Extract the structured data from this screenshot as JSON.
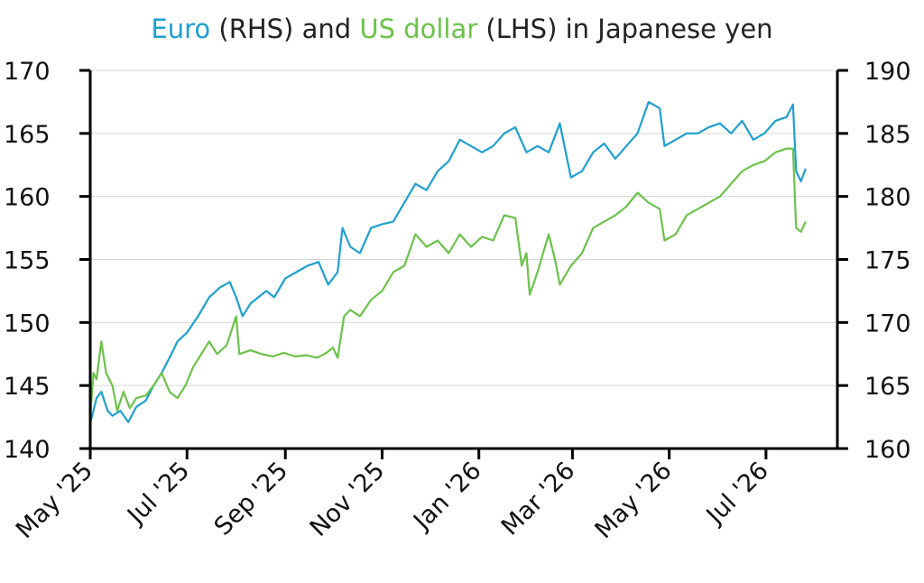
{
  "chart_data": {
    "type": "line",
    "title": "Euro (RHS) and US dollar (LHS) in Japanese yen",
    "title_parts": [
      {
        "text": "Euro",
        "color": "#1e9fd1"
      },
      {
        "text": " (RHS) and ",
        "color": "#222222"
      },
      {
        "text": "US dollar",
        "color": "#6cc24a"
      },
      {
        "text": " (LHS) in Japanese yen",
        "color": "#222222"
      }
    ],
    "x_ticks": [
      "May '25",
      "Jul '25",
      "Sep '25",
      "Nov '25",
      "Jan '26",
      "Mar '26",
      "May '26",
      "Jul '26"
    ],
    "x_tick_dates": [
      "2025-05-01",
      "2025-07-01",
      "2025-09-01",
      "2025-11-01",
      "2026-01-01",
      "2026-03-01",
      "2026-05-01",
      "2026-07-01"
    ],
    "xlim": [
      "2025-05-01",
      "2026-08-15"
    ],
    "y_left": {
      "ticks": [
        140,
        145,
        150,
        155,
        160,
        165,
        170
      ],
      "ylim": [
        140,
        170
      ]
    },
    "y_right": {
      "ticks": [
        160,
        165,
        170,
        175,
        180,
        185,
        190
      ],
      "ylim": [
        160,
        190
      ]
    },
    "grid": true,
    "series": [
      {
        "name": "Euro",
        "axis": "right",
        "color": "#1e9fd1",
        "points": [
          [
            "2025-05-01",
            162.0
          ],
          [
            "2025-05-05",
            164.0
          ],
          [
            "2025-05-08",
            164.5
          ],
          [
            "2025-05-12",
            163.0
          ],
          [
            "2025-05-15",
            162.6
          ],
          [
            "2025-05-20",
            163.0
          ],
          [
            "2025-05-25",
            162.1
          ],
          [
            "2025-05-30",
            163.3
          ],
          [
            "2025-06-05",
            163.8
          ],
          [
            "2025-06-10",
            165.0
          ],
          [
            "2025-06-15",
            166.0
          ],
          [
            "2025-06-20",
            167.2
          ],
          [
            "2025-06-25",
            168.5
          ],
          [
            "2025-07-01",
            169.2
          ],
          [
            "2025-07-08",
            170.5
          ],
          [
            "2025-07-15",
            172.0
          ],
          [
            "2025-07-22",
            172.8
          ],
          [
            "2025-07-28",
            173.2
          ],
          [
            "2025-08-01",
            172.0
          ],
          [
            "2025-08-05",
            170.5
          ],
          [
            "2025-08-10",
            171.5
          ],
          [
            "2025-08-15",
            172.0
          ],
          [
            "2025-08-20",
            172.5
          ],
          [
            "2025-08-25",
            172.0
          ],
          [
            "2025-09-01",
            173.5
          ],
          [
            "2025-09-08",
            174.0
          ],
          [
            "2025-09-15",
            174.5
          ],
          [
            "2025-09-22",
            174.8
          ],
          [
            "2025-09-28",
            173.0
          ],
          [
            "2025-10-04",
            174.0
          ],
          [
            "2025-10-07",
            177.5
          ],
          [
            "2025-10-12",
            176.0
          ],
          [
            "2025-10-18",
            175.5
          ],
          [
            "2025-10-25",
            177.5
          ],
          [
            "2025-11-01",
            177.8
          ],
          [
            "2025-11-08",
            178.0
          ],
          [
            "2025-11-15",
            179.5
          ],
          [
            "2025-11-22",
            181.0
          ],
          [
            "2025-11-29",
            180.5
          ],
          [
            "2025-12-06",
            182.0
          ],
          [
            "2025-12-13",
            182.8
          ],
          [
            "2025-12-20",
            184.5
          ],
          [
            "2025-12-27",
            184.0
          ],
          [
            "2026-01-03",
            183.5
          ],
          [
            "2026-01-10",
            184.0
          ],
          [
            "2026-01-17",
            185.0
          ],
          [
            "2026-01-24",
            185.5
          ],
          [
            "2026-01-31",
            183.5
          ],
          [
            "2026-02-07",
            184.0
          ],
          [
            "2026-02-14",
            183.5
          ],
          [
            "2026-02-21",
            185.8
          ],
          [
            "2026-02-28",
            181.5
          ],
          [
            "2026-03-07",
            182.0
          ],
          [
            "2026-03-14",
            183.5
          ],
          [
            "2026-03-21",
            184.2
          ],
          [
            "2026-03-28",
            183.0
          ],
          [
            "2026-04-04",
            184.0
          ],
          [
            "2026-04-11",
            185.0
          ],
          [
            "2026-04-18",
            187.5
          ],
          [
            "2026-04-25",
            187.0
          ],
          [
            "2026-04-28",
            184.0
          ],
          [
            "2026-05-05",
            184.5
          ],
          [
            "2026-05-12",
            185.0
          ],
          [
            "2026-05-19",
            185.0
          ],
          [
            "2026-05-26",
            185.5
          ],
          [
            "2026-06-02",
            185.8
          ],
          [
            "2026-06-09",
            185.0
          ],
          [
            "2026-06-16",
            186.0
          ],
          [
            "2026-06-23",
            184.5
          ],
          [
            "2026-06-30",
            185.0
          ],
          [
            "2026-07-07",
            186.0
          ],
          [
            "2026-07-14",
            186.3
          ],
          [
            "2026-07-18",
            187.3
          ],
          [
            "2026-07-20",
            182.0
          ],
          [
            "2026-07-23",
            181.2
          ],
          [
            "2026-07-26",
            182.2
          ]
        ]
      },
      {
        "name": "US dollar",
        "axis": "left",
        "color": "#6cc24a",
        "points": [
          [
            "2025-05-01",
            142.5
          ],
          [
            "2025-05-03",
            146.0
          ],
          [
            "2025-05-05",
            145.5
          ],
          [
            "2025-05-08",
            148.5
          ],
          [
            "2025-05-11",
            146.0
          ],
          [
            "2025-05-15",
            145.0
          ],
          [
            "2025-05-18",
            143.0
          ],
          [
            "2025-05-22",
            144.5
          ],
          [
            "2025-05-26",
            143.2
          ],
          [
            "2025-05-30",
            144.0
          ],
          [
            "2025-06-05",
            144.2
          ],
          [
            "2025-06-10",
            145.0
          ],
          [
            "2025-06-15",
            146.0
          ],
          [
            "2025-06-20",
            144.5
          ],
          [
            "2025-06-25",
            144.0
          ],
          [
            "2025-06-30",
            145.0
          ],
          [
            "2025-07-05",
            146.5
          ],
          [
            "2025-07-10",
            147.5
          ],
          [
            "2025-07-15",
            148.5
          ],
          [
            "2025-07-20",
            147.5
          ],
          [
            "2025-07-26",
            148.2
          ],
          [
            "2025-08-01",
            150.5
          ],
          [
            "2025-08-03",
            147.5
          ],
          [
            "2025-08-10",
            147.8
          ],
          [
            "2025-08-17",
            147.5
          ],
          [
            "2025-08-24",
            147.3
          ],
          [
            "2025-08-31",
            147.6
          ],
          [
            "2025-09-07",
            147.3
          ],
          [
            "2025-09-14",
            147.4
          ],
          [
            "2025-09-21",
            147.2
          ],
          [
            "2025-09-27",
            147.6
          ],
          [
            "2025-10-01",
            148.0
          ],
          [
            "2025-10-04",
            147.2
          ],
          [
            "2025-10-08",
            150.5
          ],
          [
            "2025-10-12",
            151.0
          ],
          [
            "2025-10-18",
            150.5
          ],
          [
            "2025-10-25",
            151.8
          ],
          [
            "2025-11-01",
            152.5
          ],
          [
            "2025-11-08",
            154.0
          ],
          [
            "2025-11-15",
            154.5
          ],
          [
            "2025-11-22",
            157.0
          ],
          [
            "2025-11-29",
            156.0
          ],
          [
            "2025-12-06",
            156.5
          ],
          [
            "2025-12-13",
            155.5
          ],
          [
            "2025-12-20",
            157.0
          ],
          [
            "2025-12-27",
            156.0
          ],
          [
            "2026-01-03",
            156.8
          ],
          [
            "2026-01-10",
            156.5
          ],
          [
            "2026-01-17",
            158.5
          ],
          [
            "2026-01-24",
            158.3
          ],
          [
            "2026-01-28",
            154.5
          ],
          [
            "2026-01-31",
            155.5
          ],
          [
            "2026-02-02",
            152.2
          ],
          [
            "2026-02-07",
            154.0
          ],
          [
            "2026-02-14",
            157.0
          ],
          [
            "2026-02-18",
            155.0
          ],
          [
            "2026-02-21",
            153.0
          ],
          [
            "2026-02-28",
            154.5
          ],
          [
            "2026-03-07",
            155.5
          ],
          [
            "2026-03-14",
            157.5
          ],
          [
            "2026-03-21",
            158.0
          ],
          [
            "2026-03-28",
            158.5
          ],
          [
            "2026-04-04",
            159.2
          ],
          [
            "2026-04-11",
            160.3
          ],
          [
            "2026-04-18",
            159.5
          ],
          [
            "2026-04-25",
            159.0
          ],
          [
            "2026-04-28",
            156.5
          ],
          [
            "2026-05-05",
            157.0
          ],
          [
            "2026-05-12",
            158.5
          ],
          [
            "2026-05-19",
            159.0
          ],
          [
            "2026-05-26",
            159.5
          ],
          [
            "2026-06-02",
            160.0
          ],
          [
            "2026-06-09",
            161.0
          ],
          [
            "2026-06-16",
            162.0
          ],
          [
            "2026-06-23",
            162.5
          ],
          [
            "2026-06-30",
            162.8
          ],
          [
            "2026-07-07",
            163.5
          ],
          [
            "2026-07-14",
            163.8
          ],
          [
            "2026-07-18",
            163.8
          ],
          [
            "2026-07-20",
            157.5
          ],
          [
            "2026-07-23",
            157.2
          ],
          [
            "2026-07-26",
            158.0
          ]
        ]
      }
    ]
  }
}
